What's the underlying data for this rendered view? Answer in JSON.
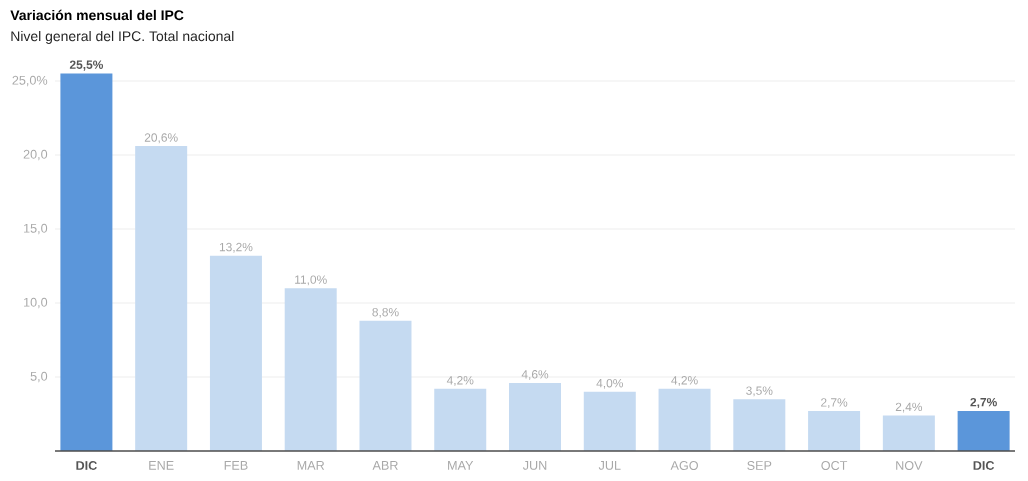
{
  "chart_data": {
    "type": "bar",
    "title": "Variación mensual del IPC",
    "subtitle": "Nivel general del IPC. Total nacional",
    "categories": [
      "DIC",
      "ENE",
      "FEB",
      "MAR",
      "ABR",
      "MAY",
      "JUN",
      "JUL",
      "AGO",
      "SEP",
      "OCT",
      "NOV",
      "DIC"
    ],
    "values": [
      25.5,
      20.6,
      13.2,
      11.0,
      8.8,
      4.2,
      4.6,
      4.0,
      4.2,
      3.5,
      2.7,
      2.4,
      2.7
    ],
    "value_labels": [
      "25,5%",
      "20,6%",
      "13,2%",
      "11,0%",
      "8,8%",
      "4,2%",
      "4,6%",
      "4,0%",
      "4,2%",
      "3,5%",
      "2,7%",
      "2,4%",
      "2,7%"
    ],
    "colors": [
      "#5b96da",
      "#c5daf1",
      "#c5daf1",
      "#c5daf1",
      "#c5daf1",
      "#c5daf1",
      "#c5daf1",
      "#c5daf1",
      "#c5daf1",
      "#c5daf1",
      "#c5daf1",
      "#c5daf1",
      "#5b96da"
    ],
    "ylim": [
      0,
      25.5
    ],
    "yticks": [
      {
        "value": 5,
        "label": "5,0"
      },
      {
        "value": 10,
        "label": "10,0"
      },
      {
        "value": 15,
        "label": "15,0"
      },
      {
        "value": 20,
        "label": "20,0"
      },
      {
        "value": 25,
        "label": "25,0%"
      }
    ],
    "grid": "y"
  }
}
